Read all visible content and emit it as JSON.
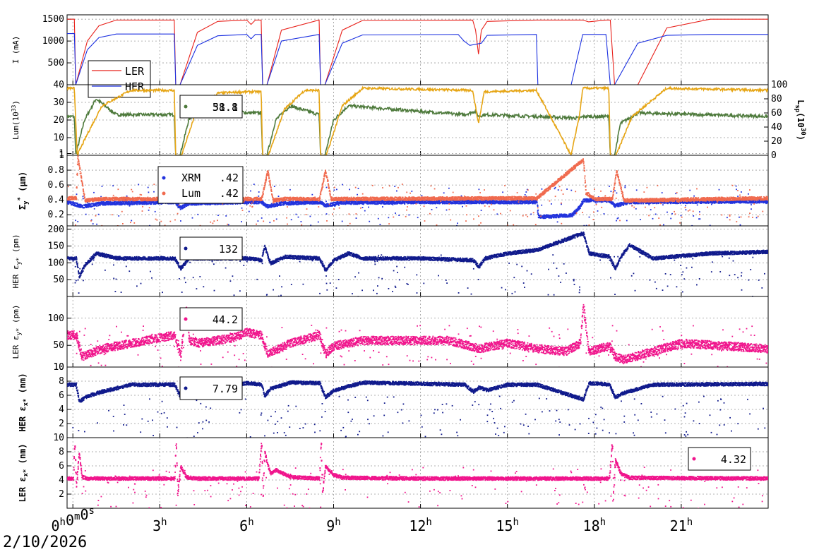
{
  "date": "2/10/2026",
  "x_axis": {
    "unit": "hours",
    "range": [
      -0.2,
      24
    ],
    "ticks": [
      {
        "v": 0,
        "label": "0h0m0s"
      },
      {
        "v": 3,
        "label": "3h"
      },
      {
        "v": 6,
        "label": "6h"
      },
      {
        "v": 9,
        "label": "9h"
      },
      {
        "v": 12,
        "label": "12h"
      },
      {
        "v": 15,
        "label": "15h"
      },
      {
        "v": 18,
        "label": "18h"
      },
      {
        "v": 21,
        "label": "21h"
      }
    ]
  },
  "colors": {
    "ler_current": "#e8201a",
    "her_current": "#1a2fe0",
    "lum": "#4e7a3c",
    "lsp": "#e6a514",
    "xrm": "#2233dd",
    "lum_size": "#f06a4e",
    "her_emit": "#101a8c",
    "ler_emit": "#f0148c"
  },
  "chart_data": [
    {
      "type": "line",
      "panel": "current",
      "ylabel": "I (mA)",
      "ylim": [
        0,
        1600
      ],
      "yticks": [
        500,
        1000,
        1500
      ],
      "grid": true,
      "legend": {
        "position": "top-left",
        "entries": [
          "LER",
          "HER"
        ]
      },
      "series": [
        {
          "name": "LER",
          "x": [
            -0.2,
            0.05,
            0.1,
            0.5,
            0.9,
            1.5,
            3.5,
            3.55,
            3.7,
            4.3,
            5,
            6,
            6.15,
            6.3,
            6.5,
            6.55,
            6.7,
            7.2,
            8.5,
            8.55,
            8.7,
            9.3,
            10,
            13.8,
            13.9,
            14,
            14.1,
            14.3,
            16,
            17.6,
            17.8,
            18.4,
            18.55,
            18.7,
            19.5,
            20.5,
            22,
            24
          ],
          "y": [
            1500,
            1500,
            0,
            1000,
            1350,
            1480,
            1480,
            0,
            0,
            1200,
            1450,
            1480,
            1380,
            1480,
            1480,
            0,
            0,
            1250,
            1480,
            0,
            0,
            1250,
            1470,
            1480,
            1250,
            700,
            1250,
            1450,
            1480,
            1480,
            1440,
            1480,
            1480,
            0,
            0,
            1300,
            1500,
            1500
          ]
        },
        {
          "name": "HER",
          "x": [
            -0.2,
            0.05,
            0.1,
            0.5,
            0.9,
            1.5,
            3.5,
            3.55,
            3.7,
            4.3,
            5,
            6,
            6.15,
            6.3,
            6.5,
            6.55,
            6.7,
            7.2,
            8.5,
            8.55,
            8.7,
            9.3,
            10,
            13.3,
            13.5,
            13.7,
            14.1,
            14.3,
            16,
            16.05,
            17.2,
            17.6,
            18.4,
            18.55,
            18.7,
            19.5,
            20.5,
            22,
            24
          ],
          "y": [
            1170,
            1170,
            0,
            800,
            1080,
            1160,
            1160,
            0,
            0,
            900,
            1120,
            1150,
            1050,
            1150,
            1150,
            0,
            0,
            1000,
            1150,
            0,
            0,
            950,
            1140,
            1150,
            1000,
            900,
            950,
            1130,
            1150,
            0,
            0,
            1150,
            1150,
            0,
            0,
            950,
            1130,
            1150,
            1150
          ]
        }
      ]
    },
    {
      "type": "line",
      "panel": "luminosity",
      "ylabel": "Lum(10",
      "ylabel_exp": "33",
      "ylabel_right": "L",
      "ylabel_right_sub": "sp",
      "ylabel_right_rest": "(10",
      "ylabel_right_exp": "30",
      "ylim": [
        0,
        40
      ],
      "yticks": [
        1,
        10,
        20,
        30,
        40
      ],
      "y2lim": [
        0,
        100
      ],
      "y2ticks": [
        0,
        20,
        40,
        60,
        80,
        100
      ],
      "grid": true,
      "legend_value": "38.8",
      "legend_value_overlap": "51.1",
      "series": [
        {
          "name": "Lum",
          "x": [
            -0.2,
            0.05,
            0.1,
            0.4,
            0.8,
            1.5,
            3.5,
            3.55,
            3.7,
            4,
            4.5,
            6,
            6.5,
            6.55,
            6.7,
            7,
            7.5,
            8.5,
            8.55,
            8.7,
            9,
            9.5,
            13.5,
            13.9,
            14,
            14.2,
            16,
            17.5,
            17.6,
            18.5,
            18.55,
            18.7,
            18.9,
            19.5,
            24
          ],
          "y": [
            22,
            22,
            0,
            20,
            32,
            23,
            23,
            0,
            0,
            20,
            30,
            24,
            24,
            0,
            0,
            20,
            28,
            23,
            0,
            0,
            20,
            28,
            23,
            25,
            22,
            23,
            22,
            21,
            22,
            22,
            0,
            0,
            18,
            24,
            22
          ]
        },
        {
          "name": "Lsp",
          "x": [
            -0.2,
            0.05,
            0.15,
            0.5,
            1,
            2,
            3.5,
            3.55,
            3.75,
            4.2,
            5,
            6,
            6.5,
            6.55,
            6.75,
            7.3,
            8,
            8.5,
            8.55,
            8.75,
            9.3,
            10,
            13.8,
            14,
            14.2,
            16,
            17.2,
            17.5,
            17.6,
            18.5,
            18.55,
            18.75,
            19.3,
            20.5,
            24
          ],
          "y": [
            95,
            95,
            0,
            30,
            70,
            92,
            92,
            0,
            0,
            55,
            88,
            90,
            90,
            0,
            0,
            65,
            92,
            92,
            0,
            0,
            70,
            95,
            92,
            45,
            90,
            92,
            0,
            60,
            95,
            95,
            0,
            0,
            55,
            95,
            92
          ]
        }
      ]
    },
    {
      "type": "scatter",
      "panel": "beam-size",
      "ylabel": "Σ",
      "ylabel_sub": "y",
      "ylabel_sup": "*",
      "ylabel_rest": " (μm)",
      "ylim": [
        0.05,
        1.0
      ],
      "yticks": [
        0.2,
        0.4,
        0.6,
        0.8,
        1
      ],
      "ytick_labels": [
        "0.2",
        "0.4",
        "0.6",
        "0.8",
        "1"
      ],
      "grid": true,
      "legend": {
        "entries": [
          {
            "name": "XRM",
            "value": ".42"
          },
          {
            "name": "Lum",
            "value": ".42"
          }
        ]
      },
      "series": [
        {
          "name": "XRM",
          "x": [
            -0.2,
            0.3,
            1,
            3.5,
            3.7,
            4,
            6,
            6.5,
            6.7,
            7.2,
            8.5,
            8.7,
            9.2,
            12,
            16,
            16.05,
            17.2,
            17.5,
            17.6,
            18.5,
            18.7,
            19.2,
            24
          ],
          "y": [
            0.38,
            0.32,
            0.36,
            0.38,
            0.3,
            0.36,
            0.38,
            0.38,
            0.32,
            0.36,
            0.38,
            0.33,
            0.37,
            0.38,
            0.38,
            0.18,
            0.2,
            0.32,
            0.4,
            0.4,
            0.33,
            0.38,
            0.39
          ]
        },
        {
          "name": "Lum",
          "x": [
            -0.2,
            0.1,
            0.15,
            0.4,
            1,
            3.5,
            3.7,
            3.9,
            4.2,
            6,
            6.5,
            6.7,
            6.9,
            7.3,
            8.5,
            8.7,
            8.9,
            9.3,
            16,
            17.6,
            17.7,
            18,
            18.6,
            18.75,
            19,
            24
          ],
          "y": [
            0.43,
            0.43,
            1.0,
            0.4,
            0.42,
            0.42,
            0.55,
            0.4,
            0.42,
            0.42,
            0.42,
            0.8,
            0.4,
            0.42,
            0.42,
            0.8,
            0.42,
            0.42,
            0.43,
            0.95,
            0.5,
            0.42,
            0.42,
            0.8,
            0.4,
            0.43
          ]
        }
      ]
    },
    {
      "type": "scatter",
      "panel": "her-vertical-emittance",
      "ylabel": "HER ε",
      "ylabel_sub": "y*",
      "ylabel_rest": " (pm)",
      "ylim": [
        0,
        210
      ],
      "yticks": [
        50,
        100,
        150,
        200
      ],
      "grid": true,
      "legend_value": "132",
      "series": [
        {
          "name": "HER",
          "x": [
            -0.2,
            0.1,
            0.2,
            0.4,
            0.8,
            1.5,
            3.5,
            3.7,
            4,
            5,
            6,
            6.5,
            6.6,
            6.8,
            7.3,
            8.5,
            8.7,
            9,
            9.5,
            10,
            12,
            13.8,
            14,
            14.2,
            15,
            16,
            17.6,
            17.8,
            18.5,
            18.7,
            18.9,
            19.2,
            20,
            22,
            24
          ],
          "y": [
            115,
            115,
            60,
            95,
            130,
            115,
            115,
            85,
            115,
            115,
            115,
            110,
            150,
            100,
            120,
            115,
            80,
            110,
            130,
            115,
            115,
            110,
            90,
            115,
            130,
            140,
            190,
            130,
            120,
            85,
            120,
            155,
            115,
            130,
            135
          ]
        }
      ]
    },
    {
      "type": "scatter",
      "panel": "ler-vertical-emittance",
      "ylabel": "LER ε",
      "ylabel_sub": "y*",
      "ylabel_rest": " (pm)",
      "ylim": [
        10,
        140
      ],
      "yticks": [
        10,
        50,
        100
      ],
      "grid": true,
      "legend_value": "44.2",
      "series": [
        {
          "name": "LER",
          "x": [
            -0.2,
            0.1,
            0.3,
            1,
            2,
            3.5,
            3.7,
            3.9,
            4,
            4.3,
            5.5,
            6,
            6.5,
            6.7,
            7.5,
            8.5,
            8.7,
            9,
            10,
            13,
            14,
            15,
            16,
            17,
            17.5,
            17.6,
            17.8,
            18.5,
            18.7,
            19,
            21,
            24
          ],
          "y": [
            70,
            70,
            30,
            45,
            55,
            70,
            30,
            120,
            60,
            55,
            65,
            75,
            70,
            35,
            55,
            70,
            35,
            50,
            60,
            60,
            45,
            55,
            45,
            40,
            55,
            125,
            40,
            50,
            30,
            25,
            55,
            45
          ]
        }
      ]
    },
    {
      "type": "scatter",
      "panel": "her-horizontal-emittance",
      "ylabel": "HER ε",
      "ylabel_sub": "x*",
      "ylabel_rest": " (nm)",
      "ylim": [
        0,
        10
      ],
      "yticks": [
        2,
        4,
        6,
        8,
        10
      ],
      "grid": true,
      "legend_value": "7.79",
      "series": [
        {
          "name": "HER",
          "x": [
            -0.2,
            0.1,
            0.2,
            0.5,
            1,
            2,
            3.5,
            3.7,
            4,
            5,
            6,
            6.5,
            6.6,
            6.8,
            7.5,
            8.5,
            8.7,
            9,
            10,
            13.5,
            13.8,
            14,
            14.3,
            15,
            16,
            17.6,
            17.8,
            18.5,
            18.7,
            19,
            20,
            24
          ],
          "y": [
            7.6,
            7.6,
            5.2,
            6,
            6.6,
            7.6,
            7.6,
            5.8,
            6.4,
            7.4,
            7.8,
            7.6,
            6,
            7,
            7.9,
            7.8,
            5.8,
            6.8,
            7.9,
            7.6,
            6.6,
            7.2,
            6.8,
            7.6,
            7.6,
            5.5,
            7.8,
            7.6,
            5.8,
            6.4,
            7.6,
            7.7
          ]
        }
      ]
    },
    {
      "type": "scatter",
      "panel": "ler-horizontal-emittance",
      "ylabel": "LER ε",
      "ylabel_sub": "x*",
      "ylabel_rest": " (nm)",
      "ylim": [
        0,
        10
      ],
      "yticks": [
        2,
        4,
        6,
        8,
        10
      ],
      "grid": true,
      "legend_value": "4.32",
      "series": [
        {
          "name": "LER",
          "x": [
            -0.2,
            0,
            0.05,
            0.1,
            0.2,
            0.3,
            0.5,
            3.5,
            3.55,
            3.6,
            3.7,
            3.9,
            4.2,
            6.4,
            6.5,
            6.55,
            6.6,
            6.8,
            7,
            7.5,
            8.5,
            8.55,
            8.6,
            8.7,
            9,
            9.3,
            12,
            14,
            15,
            18.5,
            18.6,
            18.65,
            18.7,
            18.9,
            19.2,
            24
          ],
          "y": [
            4.3,
            4.3,
            9.5,
            3,
            8,
            4.5,
            4.3,
            4.3,
            9.8,
            2,
            6,
            4.5,
            4.3,
            4.3,
            9.6,
            1.5,
            8,
            5,
            5.5,
            4.5,
            4.3,
            9.8,
            2,
            6,
            4.8,
            4.4,
            4.3,
            4.3,
            4.3,
            4.3,
            9.5,
            2,
            7,
            5,
            4.4,
            4.3
          ]
        }
      ]
    }
  ]
}
